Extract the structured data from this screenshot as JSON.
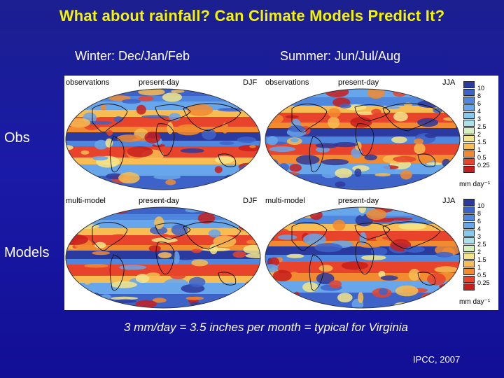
{
  "title": "What about rainfall? Can Climate Models Predict It?",
  "columns": {
    "winter": "Winter: Dec/Jan/Feb",
    "summer": "Summer: Jun/Jul/Aug"
  },
  "rows": {
    "obs": "Obs",
    "models": "Models"
  },
  "panels": [
    {
      "left": "observations",
      "center": "present-day",
      "right": "DJF"
    },
    {
      "left": "observations",
      "center": "present-day",
      "right": "JJA"
    },
    {
      "left": "multi-model",
      "center": "present-day",
      "right": "DJF"
    },
    {
      "left": "multi-model",
      "center": "present-day",
      "right": "JJA"
    }
  ],
  "colorbar": {
    "ticks": [
      "10",
      "8",
      "6",
      "4",
      "3",
      "2.5",
      "2",
      "1.5",
      "1",
      "0.5",
      "0.25"
    ],
    "colors": [
      "#2b3a9e",
      "#3d63c9",
      "#4f86de",
      "#67a6ea",
      "#84c7ef",
      "#a9e0ea",
      "#d6eec0",
      "#f3e58a",
      "#f7bd52",
      "#f28a2f",
      "#e8432b",
      "#c81d1d"
    ],
    "unit": "mm day⁻¹"
  },
  "conversion_note": "3 mm/day = 3.5 inches per month = typical for Virginia",
  "source": "IPCC, 2007"
}
